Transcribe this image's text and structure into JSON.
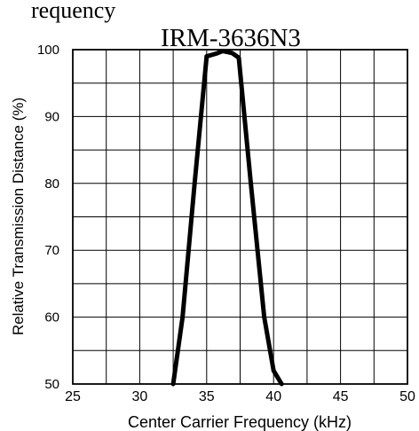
{
  "top_caption": "requency",
  "chart_data": {
    "type": "line",
    "title": "IRM-3636N3",
    "xlabel": "Center Carrier Frequency  (kHz)",
    "ylabel": "Relative Transmission Distance (%)",
    "xlim": [
      25,
      50
    ],
    "ylim": [
      50,
      100
    ],
    "x_ticks": [
      25,
      30,
      35,
      40,
      45,
      50
    ],
    "y_ticks": [
      50,
      60,
      70,
      80,
      90,
      100
    ],
    "x_tick_labels": [
      "25",
      "30",
      "35",
      "40",
      "45",
      "50"
    ],
    "y_tick_labels": [
      "50",
      "60",
      "70",
      "80",
      "90",
      "100"
    ],
    "grid": true,
    "line_color": "#000000",
    "series": [
      {
        "x": [
          32.5,
          33.2,
          34.1,
          35.0,
          35.7,
          36.2,
          36.9,
          37.4,
          38.3,
          39.3,
          40.0,
          40.6
        ],
        "y": [
          50,
          60,
          80,
          99,
          99.4,
          99.8,
          99.5,
          98.8,
          80,
          60,
          52,
          50
        ]
      }
    ]
  }
}
